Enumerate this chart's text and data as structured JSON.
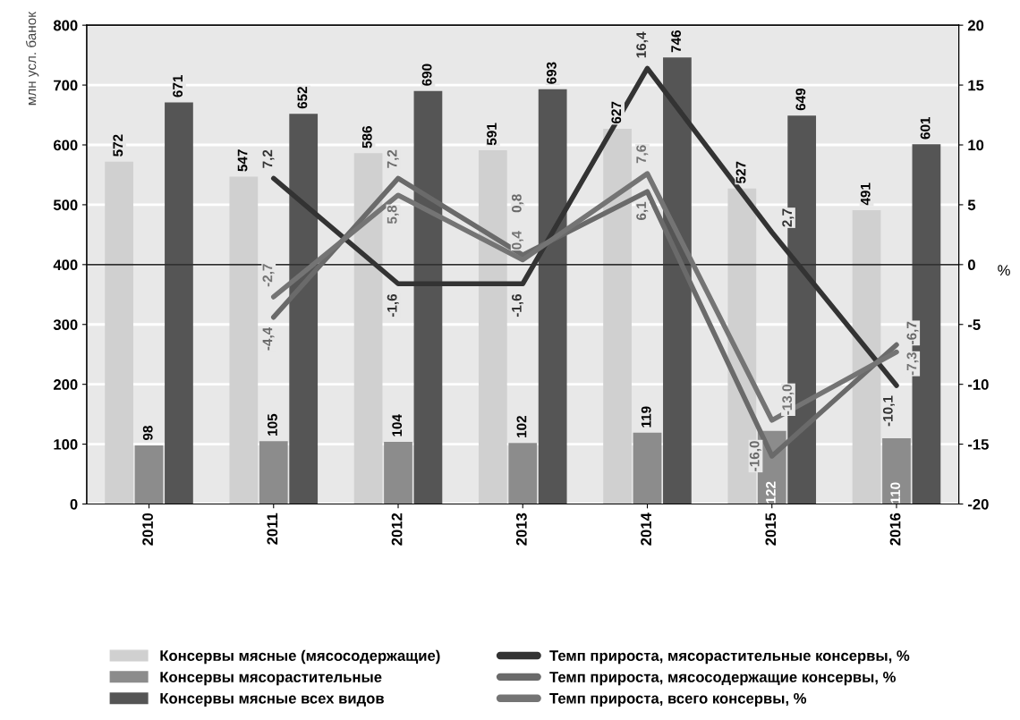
{
  "chart_data": {
    "type": "bar",
    "categories": [
      "2010",
      "2011",
      "2012",
      "2013",
      "2014",
      "2015",
      "2016"
    ],
    "ylabel": "млн усл. банок",
    "y2label": "%",
    "ylim": [
      0,
      800
    ],
    "yticks": [
      0,
      100,
      200,
      300,
      400,
      500,
      600,
      700,
      800
    ],
    "y2lim": [
      -20,
      20
    ],
    "y2ticks": [
      -20,
      -15,
      -10,
      -5,
      0,
      5,
      10,
      15,
      20
    ],
    "grid": "y",
    "legend": "bottom",
    "ref_lines": [
      {
        "axis": "y2",
        "value": 0,
        "color": "#333333"
      }
    ],
    "series": [
      {
        "name": "Консервы мясные (мясосодержащие)",
        "color": "#d0d0d0",
        "values": [
          572,
          547,
          586,
          591,
          627,
          527,
          491
        ],
        "value_labels": [
          "572",
          "547",
          "586",
          "591",
          "627",
          "527",
          "491"
        ]
      },
      {
        "name": "Консервы мясорастительные",
        "color": "#8c8c8c",
        "values": [
          98,
          105,
          104,
          102,
          119,
          122,
          110
        ],
        "value_labels": [
          "98",
          "105",
          "104",
          "102",
          "119",
          "122",
          "110"
        ]
      },
      {
        "name": "Консервы мясные всех видов",
        "color": "#555555",
        "values": [
          671,
          652,
          690,
          693,
          746,
          649,
          601
        ],
        "value_labels": [
          "671",
          "652",
          "690",
          "693",
          "746",
          "649",
          "601"
        ]
      },
      {
        "name": "Темп прироста, мясорастительные консервы, %",
        "type": "line",
        "axis": "y2",
        "color": "#333333",
        "values": [
          null,
          7.2,
          -1.6,
          -1.6,
          16.4,
          2.7,
          -10.1
        ],
        "value_labels": [
          null,
          "7,2",
          "-1,6",
          "-1,6",
          "16,4",
          "2,7",
          "-10,1"
        ]
      },
      {
        "name": "Темп прироста, мясосодержащие консервы, %",
        "type": "line",
        "axis": "y2",
        "color": "#6a6a6a",
        "values": [
          null,
          -4.4,
          7.2,
          0.8,
          6.1,
          -16.0,
          -6.7
        ],
        "value_labels": [
          null,
          "-4,4",
          "7,2",
          "0,8",
          "6,1",
          "-16,0",
          "-6,7"
        ]
      },
      {
        "name": "Темп прироста, всего консервы, %",
        "type": "line",
        "axis": "y2",
        "color": "#747474",
        "values": [
          null,
          -2.7,
          5.8,
          0.4,
          7.6,
          -13.0,
          -7.3
        ],
        "value_labels": [
          null,
          "-2,7",
          "5,8",
          "0,4",
          "7,6",
          "-13,0",
          "-7,3"
        ]
      }
    ]
  }
}
